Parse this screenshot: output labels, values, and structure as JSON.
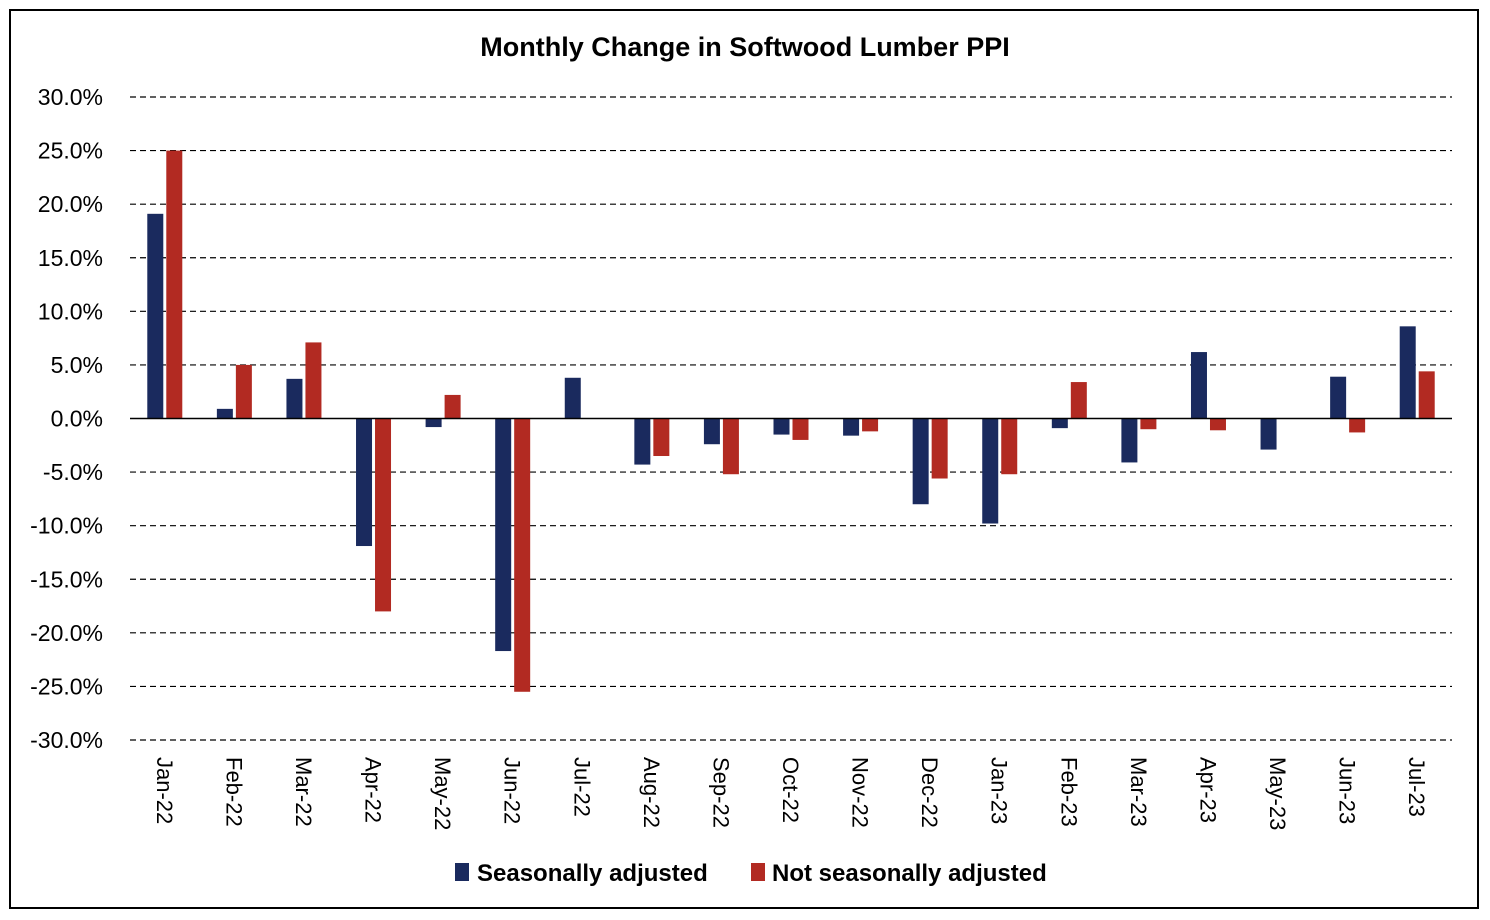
{
  "chart_data": {
    "type": "bar",
    "title": "Monthly Change in Softwood Lumber PPI",
    "xlabel": "",
    "ylabel": "",
    "ylim": [
      -0.3,
      0.3
    ],
    "yticks": [
      0.3,
      0.25,
      0.2,
      0.15,
      0.1,
      0.05,
      0.0,
      -0.05,
      -0.1,
      -0.15,
      -0.2,
      -0.25,
      -0.3
    ],
    "ytick_labels": [
      "30.0%",
      "25.0%",
      "20.0%",
      "15.0%",
      "10.0%",
      "5.0%",
      "0.0%",
      "-5.0%",
      "-10.0%",
      "-15.0%",
      "-20.0%",
      "-25.0%",
      "-30.0%"
    ],
    "grid": "horizontal dashed",
    "legend_position": "bottom",
    "categories": [
      "Jan-22",
      "Feb-22",
      "Mar-22",
      "Apr-22",
      "May-22",
      "Jun-22",
      "Jul-22",
      "Aug-22",
      "Sep-22",
      "Oct-22",
      "Nov-22",
      "Dec-22",
      "Jan-23",
      "Feb-23",
      "Mar-23",
      "Apr-23",
      "May-23",
      "Jun-23",
      "Jul-23"
    ],
    "series": [
      {
        "name": "Seasonally adjusted",
        "color": "#1a2a5e",
        "values": [
          0.191,
          0.009,
          0.037,
          -0.119,
          -0.008,
          -0.217,
          0.038,
          -0.043,
          -0.024,
          -0.015,
          -0.016,
          -0.08,
          -0.098,
          -0.009,
          -0.041,
          0.062,
          -0.029,
          0.039,
          0.086
        ]
      },
      {
        "name": "Not seasonally adjusted",
        "color": "#b22a22",
        "values": [
          0.25,
          0.05,
          0.071,
          -0.18,
          0.022,
          -0.255,
          0.0,
          -0.035,
          -0.052,
          -0.02,
          -0.012,
          -0.056,
          -0.052,
          0.034,
          -0.01,
          -0.011,
          0.0,
          -0.013,
          0.044
        ]
      }
    ]
  }
}
